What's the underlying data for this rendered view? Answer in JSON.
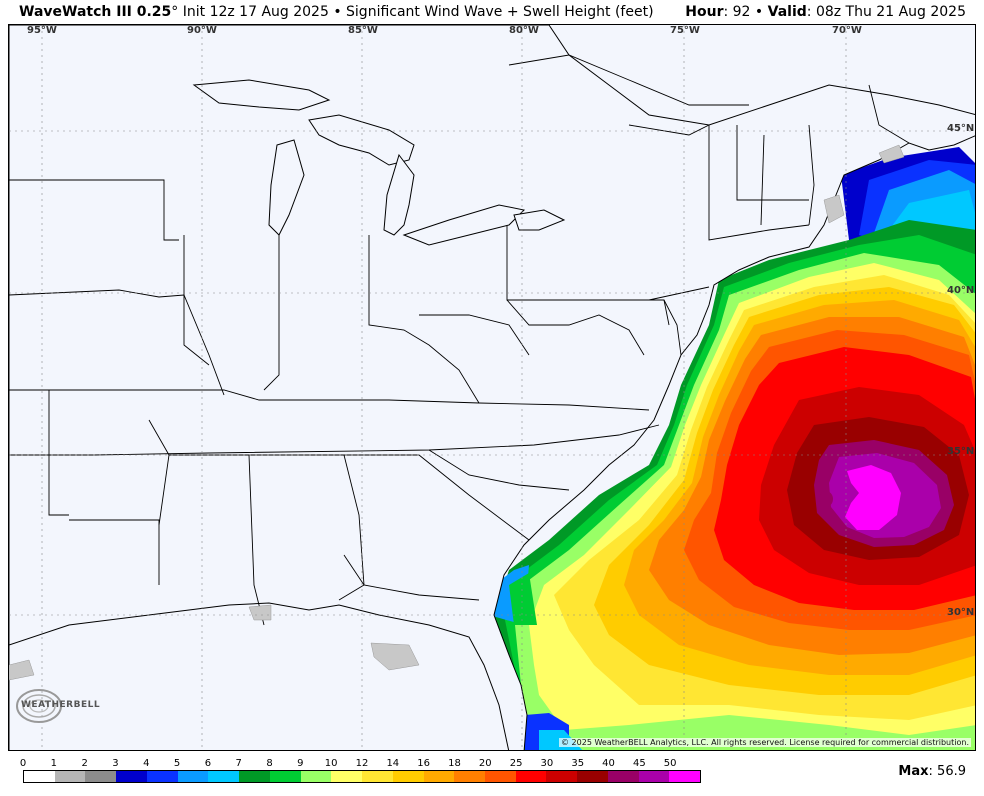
{
  "header": {
    "model": "WaveWatch III 0.25",
    "degree": "°",
    "init": "Init 12z 17 Aug 2025",
    "bullet": "•",
    "product": "Significant Wind Wave + Swell Height (feet)",
    "hour_label": "Hour",
    "hour_value": ": 92",
    "valid_label": "Valid",
    "valid_value": ": 08z Thu 21 Aug 2025"
  },
  "map": {
    "lon_labels": [
      "95°W",
      "90°W",
      "85°W",
      "80°W",
      "75°W",
      "70°W"
    ],
    "lat_labels": [
      "45°N",
      "40°N",
      "35°N",
      "30°N"
    ],
    "copyright": "© 2025 WeatherBELL Analytics, LLC. All rights reserved. License required for commercial distribution.",
    "logo_text": "WEATHERBELL"
  },
  "legend": {
    "ticks": [
      "0",
      "1",
      "2",
      "3",
      "4",
      "5",
      "6",
      "7",
      "8",
      "9",
      "10",
      "12",
      "14",
      "16",
      "18",
      "20",
      "25",
      "30",
      "35",
      "40",
      "45",
      "50"
    ],
    "colors": [
      "#ffffff",
      "#b5b5b5",
      "#8c8c8c",
      "#0000cc",
      "#0a32ff",
      "#0a9bff",
      "#00c8ff",
      "#009926",
      "#00cc33",
      "#99ff66",
      "#ffff66",
      "#ffe633",
      "#ffcc00",
      "#ffaa00",
      "#ff7f00",
      "#ff5500",
      "#ff0000",
      "#cc0000",
      "#990000",
      "#990066",
      "#aa00aa",
      "#ff00ff"
    ]
  },
  "max": {
    "label": "Max",
    "value": ": 56.9"
  }
}
